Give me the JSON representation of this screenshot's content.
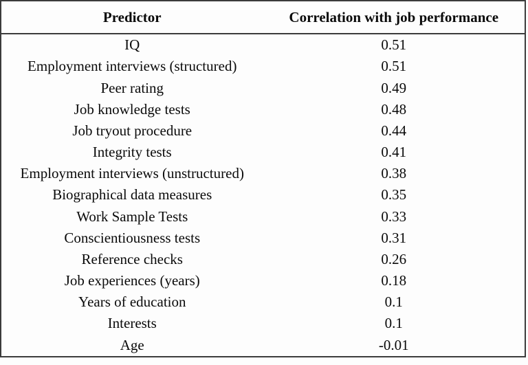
{
  "chart_data": {
    "type": "table",
    "columns": [
      "Predictor",
      "Correlation with job performance"
    ],
    "rows": [
      [
        "IQ",
        "0.51"
      ],
      [
        "Employment interviews (structured)",
        "0.51"
      ],
      [
        "Peer rating",
        "0.49"
      ],
      [
        "Job knowledge tests",
        "0.48"
      ],
      [
        "Job tryout procedure",
        "0.44"
      ],
      [
        "Integrity tests",
        "0.41"
      ],
      [
        "Employment interviews (unstructured)",
        "0.38"
      ],
      [
        "Biographical data measures",
        "0.35"
      ],
      [
        "Work Sample Tests",
        "0.33"
      ],
      [
        "Conscientiousness tests",
        "0.31"
      ],
      [
        "Reference checks",
        "0.26"
      ],
      [
        "Job experiences (years)",
        "0.18"
      ],
      [
        "Years of education",
        "0.1"
      ],
      [
        "Interests",
        "0.1"
      ],
      [
        "Age",
        "-0.01"
      ]
    ],
    "layout": {
      "columns_align": "center",
      "grid": "outer-border-and-header-rule-only",
      "header_bold": true
    }
  },
  "colors": {
    "border": "#3b3b3b",
    "text": "#0a0a0a",
    "background": "#fdfdfd"
  }
}
